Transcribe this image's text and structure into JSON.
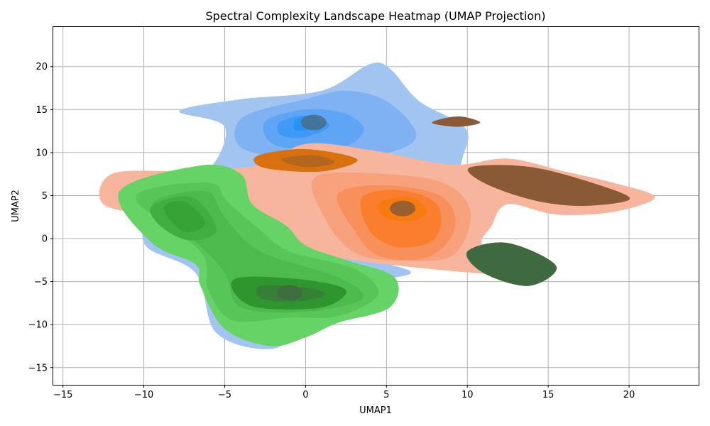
{
  "chart_data": {
    "type": "heatmap",
    "subtype": "kde-density-contours",
    "title": "Spectral Complexity Landscape Heatmap (UMAP Projection)",
    "xlabel": "UMAP1",
    "ylabel": "UMAP2",
    "xlim": [
      -15.6,
      24.3
    ],
    "ylim": [
      -17.0,
      24.6
    ],
    "xticks": [
      -15,
      -10,
      -5,
      0,
      5,
      10,
      15,
      20
    ],
    "yticks": [
      -15,
      -10,
      -5,
      0,
      5,
      10,
      15,
      20
    ],
    "grid": true,
    "legend": "none",
    "colors": {
      "blue": [
        "#a1c4f0",
        "#7fb2f2",
        "#5ea5f5",
        "#3f99f6",
        "#2693f6",
        "#1b88e6",
        "#3a7fb3",
        "#4a6f88"
      ],
      "orange": [
        "#f6b59c",
        "#f7a27c",
        "#f8905c",
        "#fa7e2e",
        "#f87b10",
        "#d9700e",
        "#b3661d",
        "#8a5a36"
      ],
      "green": [
        "#66d366",
        "#58c558",
        "#4cba4c",
        "#41ae41",
        "#37a337",
        "#2f952f",
        "#358035",
        "#3f6a3f"
      ],
      "grid": "#b0b0b0"
    },
    "series": [
      {
        "color_group": "blue",
        "peak": [
          0.5,
          13.5
        ],
        "levels": [
          [
            [
              -7.8,
              14.8
            ],
            [
              -4.0,
              16.2
            ],
            [
              1.0,
              17.2
            ],
            [
              4.0,
              20.3
            ],
            [
              5.3,
              19.6
            ],
            [
              7.0,
              16.0
            ],
            [
              9.8,
              13.0
            ],
            [
              9.8,
              10.0
            ],
            [
              8.5,
              6.5
            ],
            [
              3.0,
              5.5
            ],
            [
              2.0,
              3.0
            ],
            [
              4.0,
              -2.0
            ],
            [
              6.5,
              -4.0
            ],
            [
              3.0,
              -5.5
            ],
            [
              0.0,
              -9.5
            ],
            [
              -2.0,
              -12.8
            ],
            [
              -5.5,
              -11.0
            ],
            [
              -6.8,
              -4.0
            ],
            [
              -10.0,
              -0.5
            ],
            [
              -9.0,
              5.5
            ],
            [
              -6.0,
              8.0
            ],
            [
              -5.0,
              13.0
            ]
          ],
          [
            [
              -3.8,
              14.2
            ],
            [
              0.0,
              16.2
            ],
            [
              2.5,
              17.2
            ],
            [
              5.0,
              16.0
            ],
            [
              6.8,
              12.5
            ],
            [
              6.0,
              10.5
            ],
            [
              3.0,
              9.5
            ],
            [
              -2.0,
              9.6
            ],
            [
              -4.2,
              11.0
            ]
          ],
          [
            [
              -2.5,
              13.6
            ],
            [
              0.0,
              15.0
            ],
            [
              2.5,
              14.5
            ],
            [
              3.6,
              12.5
            ],
            [
              2.0,
              10.5
            ],
            [
              -1.8,
              10.8
            ]
          ],
          [
            [
              -1.6,
              13.5
            ],
            [
              0.0,
              14.3
            ],
            [
              1.5,
              13.2
            ],
            [
              0.0,
              11.8
            ],
            [
              -1.5,
              12.0
            ]
          ],
          [
            [
              -0.6,
              13.8
            ],
            [
              0.5,
              14.3
            ],
            [
              1.0,
              13.0
            ],
            [
              -0.6,
              12.6
            ]
          ]
        ]
      },
      {
        "color_group": "orange",
        "peak": [
          6.0,
          3.5
        ],
        "levels": [
          [
            [
              -12.5,
              4.0
            ],
            [
              -12.0,
              7.5
            ],
            [
              -8.0,
              7.9
            ],
            [
              -3.0,
              8.5
            ],
            [
              0.0,
              11.0
            ],
            [
              4.0,
              10.3
            ],
            [
              9.0,
              8.6
            ],
            [
              12.5,
              9.3
            ],
            [
              16.0,
              7.8
            ],
            [
              19.0,
              6.5
            ],
            [
              21.6,
              4.8
            ],
            [
              19.0,
              3.1
            ],
            [
              15.5,
              2.8
            ],
            [
              12.5,
              4.0
            ],
            [
              11.5,
              1.5
            ],
            [
              11.0,
              -0.8
            ],
            [
              14.0,
              -1.8
            ],
            [
              15.3,
              -3.3
            ],
            [
              12.5,
              -4.2
            ],
            [
              10.5,
              -4.0
            ],
            [
              6.0,
              -3.2
            ],
            [
              1.5,
              -2.0
            ],
            [
              -0.8,
              -0.3
            ],
            [
              -2.0,
              1.5
            ],
            [
              -5.5,
              1.0
            ],
            [
              -9.0,
              2.5
            ]
          ],
          [
            [
              0.5,
              7.0
            ],
            [
              4.0,
              7.6
            ],
            [
              8.5,
              6.5
            ],
            [
              10.2,
              3.0
            ],
            [
              9.2,
              -1.8
            ],
            [
              6.5,
              -2.6
            ],
            [
              3.2,
              -1.8
            ],
            [
              1.3,
              2.0
            ]
          ],
          [
            [
              2.0,
              5.2
            ],
            [
              5.0,
              6.2
            ],
            [
              8.5,
              4.8
            ],
            [
              9.2,
              1.0
            ],
            [
              7.5,
              -2.2
            ],
            [
              4.5,
              -2.0
            ],
            [
              3.0,
              1.0
            ]
          ],
          [
            [
              3.5,
              4.8
            ],
            [
              6.0,
              5.6
            ],
            [
              8.2,
              3.8
            ],
            [
              8.0,
              0.0
            ],
            [
              5.8,
              -1.0
            ],
            [
              4.0,
              0.8
            ]
          ],
          [
            [
              4.6,
              4.2
            ],
            [
              6.5,
              4.8
            ],
            [
              7.5,
              3.2
            ],
            [
              6.5,
              2.0
            ],
            [
              4.8,
              2.6
            ]
          ],
          [
            [
              -3.0,
              9.6
            ],
            [
              0.0,
              10.4
            ],
            [
              3.2,
              9.2
            ],
            [
              1.0,
              7.8
            ],
            [
              -2.5,
              8.2
            ]
          ],
          [
            [
              -1.5,
              9.2
            ],
            [
              0.5,
              9.7
            ],
            [
              1.8,
              8.8
            ],
            [
              0.0,
              8.3
            ]
          ],
          [
            [
              10.2,
              8.3
            ],
            [
              14.0,
              8.3
            ],
            [
              18.5,
              6.0
            ],
            [
              20.0,
              4.5
            ],
            [
              17.0,
              3.8
            ],
            [
              14.0,
              4.5
            ],
            [
              11.0,
              6.5
            ]
          ],
          [
            [
              11.5,
              7.5
            ],
            [
              15.0,
              7.0
            ],
            [
              18.5,
              5.2
            ],
            [
              17.0,
              4.2
            ],
            [
              13.5,
              5.2
            ]
          ],
          [
            [
              13.0,
              6.5
            ],
            [
              16.0,
              5.8
            ],
            [
              18.0,
              4.9
            ],
            [
              15.5,
              4.4
            ],
            [
              13.0,
              5.4
            ]
          ],
          [
            [
              14.5,
              5.9
            ],
            [
              16.3,
              5.4
            ],
            [
              17.2,
              4.9
            ],
            [
              15.2,
              4.8
            ]
          ],
          [
            [
              8.0,
              13.7
            ],
            [
              9.5,
              14.2
            ],
            [
              10.8,
              13.5
            ],
            [
              9.5,
              13.0
            ],
            [
              8.0,
              13.3
            ]
          ]
        ]
      },
      {
        "color_group": "green",
        "peak": [
          -1.0,
          -6.3
        ],
        "levels": [
          [
            [
              -11.5,
              5.5
            ],
            [
              -6.5,
              8.5
            ],
            [
              -4.0,
              7.5
            ],
            [
              -3.3,
              4.0
            ],
            [
              -1.2,
              1.5
            ],
            [
              0.0,
              -0.8
            ],
            [
              2.5,
              -2.5
            ],
            [
              5.5,
              -4.5
            ],
            [
              5.2,
              -8.0
            ],
            [
              2.0,
              -9.8
            ],
            [
              0.0,
              -11.5
            ],
            [
              -2.2,
              -12.5
            ],
            [
              -5.0,
              -10.5
            ],
            [
              -6.5,
              -5.5
            ],
            [
              -6.8,
              -3.0
            ],
            [
              -9.5,
              -0.5
            ]
          ],
          [
            [
              -10.5,
              4.8
            ],
            [
              -6.0,
              6.5
            ],
            [
              -4.8,
              4.2
            ],
            [
              -2.8,
              1.0
            ],
            [
              -1.0,
              -1.5
            ],
            [
              3.0,
              -3.5
            ],
            [
              4.5,
              -6.5
            ],
            [
              2.0,
              -9.0
            ],
            [
              -1.0,
              -9.2
            ],
            [
              -4.5,
              -9.5
            ],
            [
              -6.0,
              -6.0
            ],
            [
              -6.5,
              -1.5
            ]
          ],
          [
            [
              -9.5,
              4.0
            ],
            [
              -6.2,
              5.5
            ],
            [
              -5.0,
              2.5
            ],
            [
              -2.8,
              -1.5
            ],
            [
              2.0,
              -4.5
            ],
            [
              3.5,
              -7.0
            ],
            [
              0.0,
              -8.5
            ],
            [
              -4.0,
              -8.0
            ],
            [
              -5.0,
              -4.0
            ],
            [
              -7.0,
              0.0
            ]
          ],
          [
            [
              -9.5,
              3.8
            ],
            [
              -7.0,
              4.8
            ],
            [
              -5.5,
              1.0
            ],
            [
              -7.2,
              -0.2
            ],
            [
              -9.0,
              1.5
            ]
          ],
          [
            [
              -8.8,
              3.5
            ],
            [
              -7.5,
              4.3
            ],
            [
              -6.2,
              1.8
            ],
            [
              -7.5,
              0.8
            ]
          ],
          [
            [
              -4.0,
              -4.5
            ],
            [
              0.0,
              -4.8
            ],
            [
              2.5,
              -6.0
            ],
            [
              1.0,
              -8.0
            ],
            [
              -3.0,
              -8.0
            ],
            [
              -4.5,
              -6.0
            ]
          ],
          [
            [
              -2.8,
              -5.5
            ],
            [
              0.0,
              -5.7
            ],
            [
              1.2,
              -6.5
            ],
            [
              -0.5,
              -7.3
            ],
            [
              -2.7,
              -7.0
            ]
          ],
          [
            [
              10.0,
              -1.5
            ],
            [
              12.5,
              -0.5
            ],
            [
              15.5,
              -3.2
            ],
            [
              13.8,
              -5.5
            ],
            [
              11.0,
              -4.0
            ]
          ],
          [
            [
              11.0,
              -2.0
            ],
            [
              13.0,
              -1.5
            ],
            [
              14.8,
              -3.8
            ],
            [
              12.0,
              -4.2
            ]
          ],
          [
            [
              12.0,
              -2.5
            ],
            [
              13.5,
              -2.5
            ],
            [
              14.2,
              -3.5
            ],
            [
              12.3,
              -3.4
            ]
          ]
        ]
      }
    ]
  }
}
